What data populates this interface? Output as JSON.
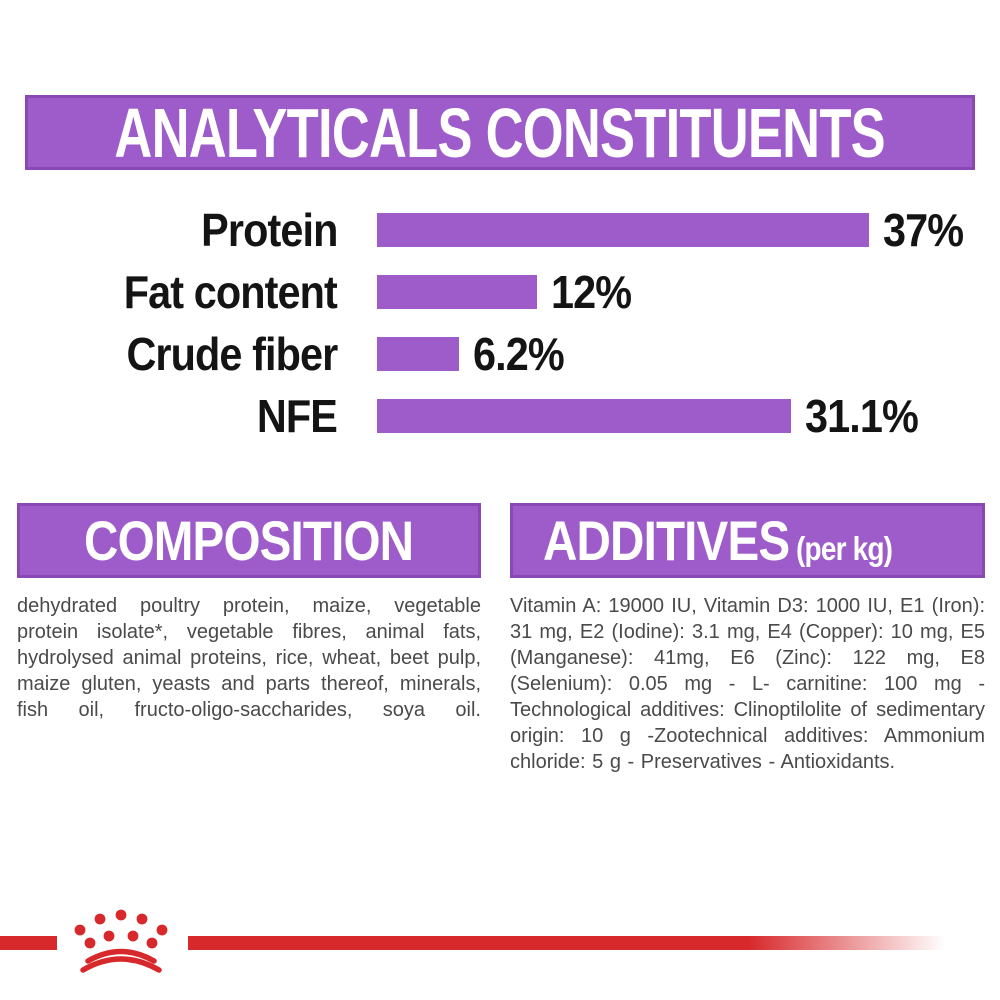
{
  "chart_data": {
    "type": "bar",
    "orientation": "horizontal",
    "title": "ANALYTICALS CONSTITUENTS",
    "categories": [
      "Protein",
      "Fat content",
      "Crude fiber",
      "NFE"
    ],
    "values": [
      37,
      12,
      6.2,
      31.1
    ],
    "value_labels": [
      "37%",
      "12%",
      "6.2%",
      "31.1%"
    ],
    "unit": "%",
    "xlim": [
      0,
      37
    ],
    "grid": false,
    "legend": false,
    "bar_color": "#9d5cc9",
    "label_color": "#141414"
  },
  "sections": {
    "composition": {
      "heading": "COMPOSITION",
      "body": "dehydrated poultry protein, maize, vegetable protein isolate*, vegetable fibres, animal fats, hydrolysed animal proteins, rice, wheat, beet pulp, maize gluten, yeasts and parts thereof, minerals, fish oil, fructo-oligo-saccharides, soya oil."
    },
    "additives": {
      "heading": "ADDITIVES",
      "heading_suffix": "(per kg)",
      "body": "Vitamin A: 19000 IU, Vitamin D3: 1000 IU, E1 (Iron): 31 mg, E2 (Iodine): 3.1 mg, E4 (Copper): 10 mg, E5 (Manganese): 41mg, E6 (Zinc): 122 mg, E8 (Selenium): 0.05 mg - L- carnitine: 100 mg - Technological additives: Clinoptilolite of sedimentary origin: 10 g -Zootechnical additives: Ammonium chloride: 5 g - Preservatives - Antioxidants."
    }
  },
  "footer": {
    "logo_icon": "royal-canin-crown",
    "accent_color": "#d7282b"
  },
  "colors": {
    "banner_purple": "#9d5cc9",
    "banner_border_purple": "#8a48b5",
    "brand_red": "#d7282b",
    "body_text_gray": "#4a4a4a",
    "heading_text": "#ffffff"
  }
}
